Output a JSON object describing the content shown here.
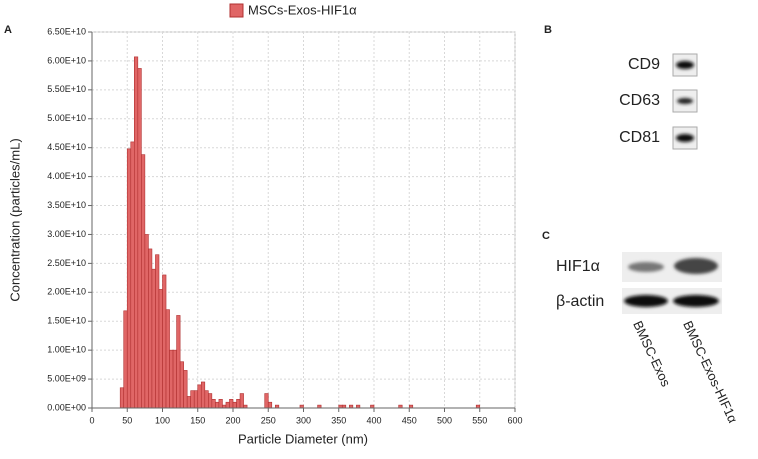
{
  "chart_data": {
    "type": "histogram",
    "xlabel": "Particle Diameter (nm)",
    "ylabel": "Concentration (particles/mL)",
    "series_name": "MSCs-Exos-HIF1α",
    "color": "#e06666",
    "bins": [
      40,
      45,
      50,
      55,
      60,
      65,
      70,
      75,
      80,
      85,
      90,
      95,
      100,
      105,
      110,
      115,
      120,
      125,
      130,
      135,
      140,
      145,
      150,
      155,
      160,
      165,
      170,
      175,
      180,
      185,
      190,
      195,
      200,
      205,
      210,
      215,
      220,
      225,
      230,
      235,
      240,
      245,
      250,
      255,
      260,
      265,
      270,
      275,
      280,
      285,
      290,
      295,
      300,
      305,
      310,
      315,
      320,
      325,
      330,
      335,
      340,
      345,
      350,
      355,
      360,
      365,
      370,
      375,
      380,
      385,
      390,
      395,
      400,
      405,
      410,
      415,
      420,
      425,
      430,
      435,
      440,
      445,
      450,
      455,
      460,
      465,
      470,
      475,
      480,
      485,
      490,
      495,
      500,
      505,
      510,
      515,
      520,
      525,
      530,
      535,
      540,
      545,
      550
    ],
    "counts": [
      3500000000.0,
      16800000000.0,
      44800000000.0,
      46000000000.0,
      60700000000.0,
      58700000000.0,
      43800000000.0,
      30000000000.0,
      27500000000.0,
      24000000000.0,
      26500000000.0,
      20500000000.0,
      23000000000.0,
      17000000000.0,
      10000000000.0,
      10000000000.0,
      16000000000.0,
      8000000000.0,
      6500000000.0,
      2000000000.0,
      3000000000.0,
      3000000000.0,
      4000000000.0,
      4500000000.0,
      3000000000.0,
      2500000000.0,
      1500000000.0,
      1000000000.0,
      1500000000.0,
      500000000.0,
      1000000000.0,
      1500000000.0,
      1000000000.0,
      1500000000.0,
      2500000000.0,
      500000000.0,
      0,
      0,
      0,
      0,
      0,
      2500000000.0,
      1000000000.0,
      0,
      500000000.0,
      0,
      0,
      0,
      0,
      0,
      0,
      500000000.0,
      0,
      0,
      0,
      0,
      500000000.0,
      0,
      0,
      0,
      0,
      0,
      500000000.0,
      500000000.0,
      0,
      500000000.0,
      0,
      500000000.0,
      0,
      0,
      0,
      500000000.0,
      0,
      0,
      0,
      0,
      0,
      0,
      0,
      500000000.0,
      0,
      0,
      500000000.0,
      0,
      0,
      0,
      0,
      0,
      0,
      0,
      0,
      0,
      0,
      0,
      0,
      0,
      0,
      0,
      0,
      0,
      0,
      500000000.0
    ],
    "xlim": [
      0,
      600
    ],
    "xticks": [
      0,
      50,
      100,
      150,
      200,
      250,
      300,
      350,
      400,
      450,
      500,
      550,
      600
    ],
    "ylim": [
      0,
      65000000000.0
    ],
    "yticks": [
      {
        "value": 0,
        "label": "0.00E+00"
      },
      {
        "value": 5000000000.0,
        "label": "5.00E+09"
      },
      {
        "value": 10000000000.0,
        "label": "1.00E+10"
      },
      {
        "value": 15000000000.0,
        "label": "1.50E+10"
      },
      {
        "value": 20000000000.0,
        "label": "2.00E+10"
      },
      {
        "value": 25000000000.0,
        "label": "2.50E+10"
      },
      {
        "value": 30000000000.0,
        "label": "3.00E+10"
      },
      {
        "value": 35000000000.0,
        "label": "3.50E+10"
      },
      {
        "value": 40000000000.0,
        "label": "4.00E+10"
      },
      {
        "value": 45000000000.0,
        "label": "4.50E+10"
      },
      {
        "value": 50000000000.0,
        "label": "5.00E+10"
      },
      {
        "value": 55000000000.0,
        "label": "5.50E+10"
      },
      {
        "value": 60000000000.0,
        "label": "6.00E+10"
      },
      {
        "value": 65000000000.0,
        "label": "6.50E+10"
      }
    ],
    "grid": true
  },
  "figure": {
    "panel_labels": [
      "A",
      "B",
      "C"
    ],
    "blot_b": [
      "CD9",
      "CD63",
      "CD81"
    ],
    "blot_c": [
      "HIF1α",
      "β-actin"
    ],
    "lanes_c": [
      "BMSC-Exos",
      "BMSC-Exos-HIF1α"
    ]
  }
}
